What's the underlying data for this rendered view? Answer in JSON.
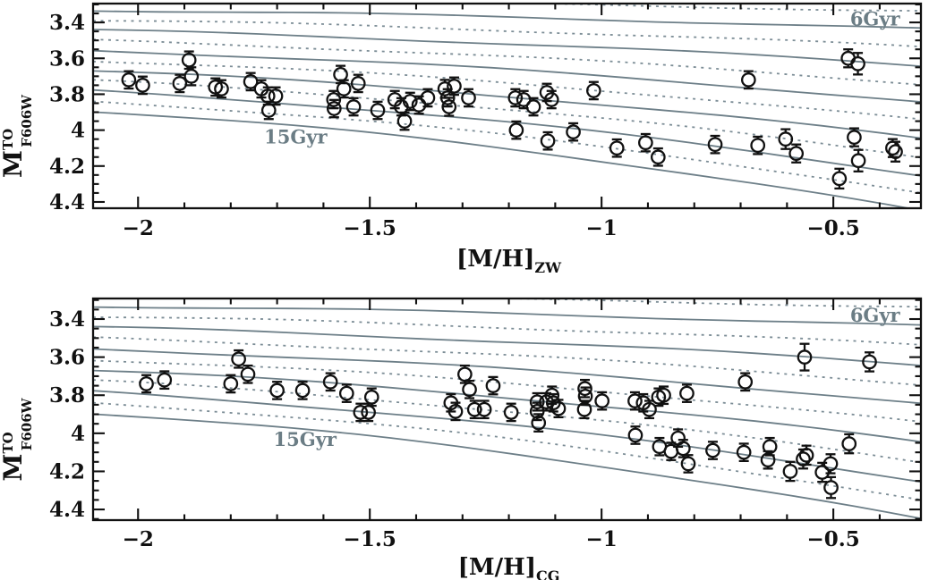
{
  "figure": {
    "background": "#ffffff",
    "frame_color": "#111111",
    "point_color": "#111111",
    "iso_solid_color": "#6d7f88",
    "iso_dashed_color": "#7c8d96",
    "age_label_color": "#6b7d85"
  },
  "chart_data": [
    {
      "id": "top",
      "type": "scatter",
      "xlabel": {
        "main": "[M/H]",
        "sub": "ZW"
      },
      "ylabel": {
        "main": "M",
        "sup": "TO",
        "sub": "F606W"
      },
      "xlim": [
        -2.097,
        -0.311
      ],
      "ylim": [
        3.295,
        4.435
      ],
      "xticks": [
        {
          "v": -2,
          "label": "−2"
        },
        {
          "v": -1.5,
          "label": "−1.5"
        },
        {
          "v": -1,
          "label": "−1"
        },
        {
          "v": -0.5,
          "label": "−0.5"
        }
      ],
      "yticks": [
        {
          "v": 3.4,
          "label": "3.4"
        },
        {
          "v": 3.6,
          "label": "3.6"
        },
        {
          "v": 3.8,
          "label": "3.8"
        },
        {
          "v": 4.0,
          "label": "4"
        },
        {
          "v": 4.2,
          "label": "4.2"
        },
        {
          "v": 4.4,
          "label": "4.4"
        }
      ],
      "xminor": 0.1,
      "yminor": 0.05,
      "grid": false,
      "annotations": [
        {
          "text": "6Gyr",
          "x": -0.41,
          "y": 3.383
        },
        {
          "text": "15Gyr",
          "x": -1.66,
          "y": 4.04
        }
      ],
      "isochrones": {
        "description": "age grid 6 to 15 Gyr, alternating solid/dashed, fainter and steeper toward higher metallicity",
        "count": 12,
        "m0_start": 3.275,
        "m0_step": 0.0562,
        "drop_start": 0.06,
        "drop_step": 0.0455,
        "wiggle": 0.006,
        "dash": "3 5.5"
      },
      "points": [
        [
          -2.02,
          3.72,
          0.03
        ],
        [
          -1.99,
          3.75,
          0.04
        ],
        [
          -1.91,
          3.74,
          0.03
        ],
        [
          -1.89,
          3.61,
          0.04
        ],
        [
          -1.885,
          3.7,
          0.05
        ],
        [
          -1.833,
          3.76,
          0.03
        ],
        [
          -1.82,
          3.77,
          0.03
        ],
        [
          -1.757,
          3.73,
          0.03
        ],
        [
          -1.734,
          3.77,
          0.03
        ],
        [
          -1.72,
          3.81,
          0.035
        ],
        [
          -1.703,
          3.81,
          0.03
        ],
        [
          -1.718,
          3.89,
          0.045
        ],
        [
          -1.563,
          3.69,
          0.035
        ],
        [
          -1.556,
          3.77,
          0.04
        ],
        [
          -1.578,
          3.83,
          0.04
        ],
        [
          -1.577,
          3.88,
          0.04
        ],
        [
          -1.525,
          3.74,
          0.04
        ],
        [
          -1.535,
          3.87,
          0.04
        ],
        [
          -1.483,
          3.89,
          0.045
        ],
        [
          -1.446,
          3.83,
          0.04
        ],
        [
          -1.432,
          3.87,
          0.035
        ],
        [
          -1.425,
          3.95,
          0.04
        ],
        [
          -1.413,
          3.84,
          0.045
        ],
        [
          -1.394,
          3.86,
          0.04
        ],
        [
          -1.375,
          3.82,
          0.045
        ],
        [
          -1.338,
          3.77,
          0.05
        ],
        [
          -1.332,
          3.82,
          0.04
        ],
        [
          -1.329,
          3.87,
          0.05
        ],
        [
          -1.318,
          3.755,
          0.04
        ],
        [
          -1.287,
          3.82,
          0.02
        ],
        [
          -1.186,
          3.82,
          0.03
        ],
        [
          -1.168,
          3.83,
          0.03
        ],
        [
          -1.147,
          3.87,
          0.035
        ],
        [
          -1.118,
          3.79,
          0.03
        ],
        [
          -1.108,
          3.83,
          0.03
        ],
        [
          -1.184,
          4.0,
          0.03
        ],
        [
          -1.116,
          4.06,
          0.035
        ],
        [
          -1.061,
          4.01,
          0.035
        ],
        [
          -1.017,
          3.78,
          0.03
        ],
        [
          -0.967,
          4.1,
          0.035
        ],
        [
          -0.905,
          4.07,
          0.04
        ],
        [
          -0.878,
          4.15,
          0.04
        ],
        [
          -0.755,
          4.08,
          0.045
        ],
        [
          -0.683,
          3.72,
          0.03
        ],
        [
          -0.663,
          4.085,
          0.04
        ],
        [
          -0.603,
          4.05,
          0.055
        ],
        [
          -0.58,
          4.13,
          0.05
        ],
        [
          -0.487,
          4.27,
          0.055
        ],
        [
          -0.468,
          3.6,
          0.05
        ],
        [
          -0.447,
          3.63,
          0.06
        ],
        [
          -0.455,
          4.04,
          0.05
        ],
        [
          -0.446,
          4.17,
          0.06
        ],
        [
          -0.372,
          4.1,
          0.05
        ],
        [
          -0.366,
          4.12,
          0.055
        ]
      ]
    },
    {
      "id": "bottom",
      "type": "scatter",
      "xlabel": {
        "main": "[M/H]",
        "sub": "CG"
      },
      "ylabel": {
        "main": "M",
        "sup": "TO",
        "sub": "F606W"
      },
      "xlim": [
        -2.097,
        -0.311
      ],
      "ylim": [
        3.292,
        4.456
      ],
      "xticks": [
        {
          "v": -2,
          "label": "−2"
        },
        {
          "v": -1.5,
          "label": "−1.5"
        },
        {
          "v": -1,
          "label": "−1"
        },
        {
          "v": -0.5,
          "label": "−0.5"
        }
      ],
      "yticks": [
        {
          "v": 3.4,
          "label": "3.4"
        },
        {
          "v": 3.6,
          "label": "3.6"
        },
        {
          "v": 3.8,
          "label": "3.8"
        },
        {
          "v": 4.0,
          "label": "4"
        },
        {
          "v": 4.2,
          "label": "4.2"
        },
        {
          "v": 4.4,
          "label": "4.4"
        }
      ],
      "xminor": 0.1,
      "yminor": 0.05,
      "grid": false,
      "annotations": [
        {
          "text": "6Gyr",
          "x": -0.41,
          "y": 3.382
        },
        {
          "text": "15Gyr",
          "x": -1.64,
          "y": 4.034
        }
      ],
      "isochrones": {
        "description": "age grid 6 to 15 Gyr, alternating solid/dashed, fainter and steeper toward higher metallicity",
        "count": 12,
        "m0_start": 3.275,
        "m0_step": 0.0562,
        "drop_start": 0.06,
        "drop_step": 0.0455,
        "wiggle": 0.006,
        "dash": "3 5.5"
      },
      "points": [
        [
          -1.982,
          3.74,
          0.03
        ],
        [
          -1.943,
          3.72,
          0.03
        ],
        [
          -1.8,
          3.74,
          0.035
        ],
        [
          -1.783,
          3.61,
          0.035
        ],
        [
          -1.763,
          3.69,
          0.035
        ],
        [
          -1.7,
          3.775,
          0.03
        ],
        [
          -1.645,
          3.775,
          0.03
        ],
        [
          -1.585,
          3.73,
          0.03
        ],
        [
          -1.55,
          3.79,
          0.035
        ],
        [
          -1.52,
          3.89,
          0.04
        ],
        [
          -1.503,
          3.89,
          0.04
        ],
        [
          -1.496,
          3.81,
          0.04
        ],
        [
          -1.325,
          3.84,
          0.04
        ],
        [
          -1.315,
          3.885,
          0.04
        ],
        [
          -1.295,
          3.69,
          0.045
        ],
        [
          -1.285,
          3.77,
          0.045
        ],
        [
          -1.274,
          3.875,
          0.04
        ],
        [
          -1.253,
          3.875,
          0.04
        ],
        [
          -1.234,
          3.75,
          0.04
        ],
        [
          -1.195,
          3.89,
          0.045
        ],
        [
          -1.139,
          3.835,
          0.04
        ],
        [
          -1.139,
          3.885,
          0.04
        ],
        [
          -1.136,
          3.945,
          0.04
        ],
        [
          -1.119,
          3.835,
          0.04
        ],
        [
          -1.107,
          3.8,
          0.035
        ],
        [
          -1.104,
          3.84,
          0.04
        ],
        [
          -1.093,
          3.87,
          0.04
        ],
        [
          -1.036,
          3.765,
          0.04
        ],
        [
          -1.035,
          3.805,
          0.035
        ],
        [
          -1.037,
          3.875,
          0.04
        ],
        [
          -0.999,
          3.83,
          0.02
        ],
        [
          -0.928,
          3.83,
          0.035
        ],
        [
          -0.91,
          3.84,
          0.035
        ],
        [
          -0.897,
          3.875,
          0.035
        ],
        [
          -0.877,
          3.81,
          0.035
        ],
        [
          -0.866,
          3.8,
          0.035
        ],
        [
          -0.816,
          3.79,
          0.035
        ],
        [
          -0.69,
          3.73,
          0.03
        ],
        [
          -0.562,
          3.6,
          0.07
        ],
        [
          -0.422,
          3.625,
          0.05
        ],
        [
          -0.927,
          4.01,
          0.035
        ],
        [
          -0.875,
          4.07,
          0.04
        ],
        [
          -0.85,
          4.095,
          0.045
        ],
        [
          -0.835,
          4.025,
          0.04
        ],
        [
          -0.824,
          4.08,
          0.04
        ],
        [
          -0.813,
          4.16,
          0.045
        ],
        [
          -0.76,
          4.09,
          0.04
        ],
        [
          -0.693,
          4.1,
          0.04
        ],
        [
          -0.637,
          4.07,
          0.04
        ],
        [
          -0.641,
          4.14,
          0.045
        ],
        [
          -0.593,
          4.2,
          0.05
        ],
        [
          -0.565,
          4.135,
          0.05
        ],
        [
          -0.558,
          4.115,
          0.05
        ],
        [
          -0.524,
          4.205,
          0.05
        ],
        [
          -0.506,
          4.16,
          0.05
        ],
        [
          -0.505,
          4.285,
          0.055
        ],
        [
          -0.466,
          4.055,
          0.05
        ]
      ]
    }
  ]
}
